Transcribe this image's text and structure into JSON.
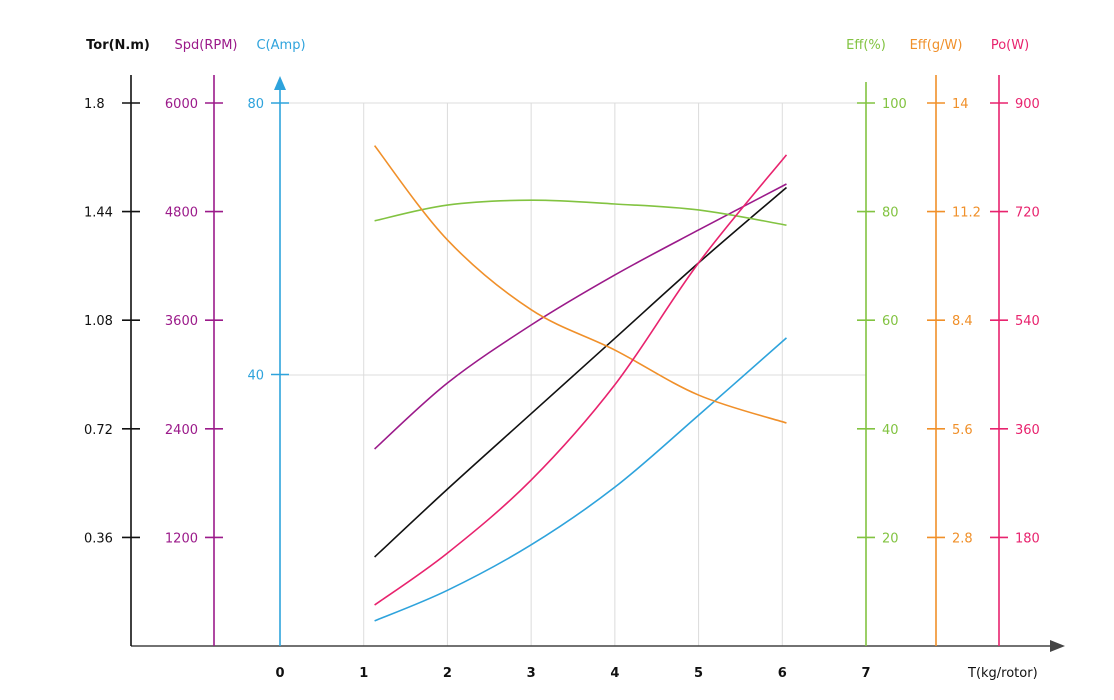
{
  "chart_data": {
    "type": "line",
    "xlabel": "T(kg/rotor)",
    "xlim": [
      0,
      7
    ],
    "x_ticks": [
      0,
      1,
      2,
      3,
      4,
      5,
      6,
      7
    ],
    "grid": true,
    "axes": [
      {
        "id": "tor",
        "label": "Tor(N.m)",
        "side": "left",
        "color": "#111111",
        "range": [
          0,
          1.8
        ],
        "ticks": [
          0.36,
          0.72,
          1.08,
          1.44,
          1.8
        ]
      },
      {
        "id": "spd",
        "label": "Spd(RPM)",
        "side": "left",
        "color": "#9b1a8a",
        "range": [
          0,
          6000
        ],
        "ticks": [
          1200,
          2400,
          3600,
          4800,
          6000
        ]
      },
      {
        "id": "cur",
        "label": "C(Amp)",
        "side": "left",
        "color": "#2ea3dc",
        "range": [
          0,
          80
        ],
        "ticks": [
          40,
          80
        ]
      },
      {
        "id": "effp",
        "label": "Eff(%)",
        "side": "right",
        "color": "#82c341",
        "range": [
          0,
          100
        ],
        "ticks": [
          20,
          40,
          60,
          80,
          100
        ]
      },
      {
        "id": "effg",
        "label": "Eff(g/W)",
        "side": "right",
        "color": "#f0902a",
        "range": [
          0,
          14
        ],
        "ticks": [
          2.8,
          5.6,
          8.4,
          11.2,
          14
        ]
      },
      {
        "id": "po",
        "label": "Po(W)",
        "side": "right",
        "color": "#e8236e",
        "range": [
          0,
          900
        ],
        "ticks": [
          180,
          360,
          540,
          720,
          900
        ]
      }
    ],
    "x": [
      1.13,
      2,
      3,
      4,
      5,
      6.05
    ],
    "series": [
      {
        "name": "Torque",
        "axis": "tor",
        "values": [
          0.295,
          0.52,
          0.77,
          1.02,
          1.27,
          1.52
        ]
      },
      {
        "name": "Speed",
        "axis": "spd",
        "values": [
          2177,
          2906,
          3547,
          4100,
          4597,
          5105
        ]
      },
      {
        "name": "Current",
        "axis": "cur",
        "values": [
          3.7,
          8.2,
          14.9,
          23.4,
          34.0,
          45.4
        ]
      },
      {
        "name": "Efficiency %",
        "axis": "effp",
        "values": [
          78.3,
          81.2,
          82.1,
          81.4,
          80.3,
          77.5
        ]
      },
      {
        "name": "Efficiency g/W",
        "axis": "effg",
        "values": [
          12.9,
          10.47,
          8.67,
          7.63,
          6.47,
          5.75
        ]
      },
      {
        "name": "Power",
        "axis": "po",
        "values": [
          68,
          154,
          275,
          433,
          635,
          814
        ]
      }
    ]
  }
}
